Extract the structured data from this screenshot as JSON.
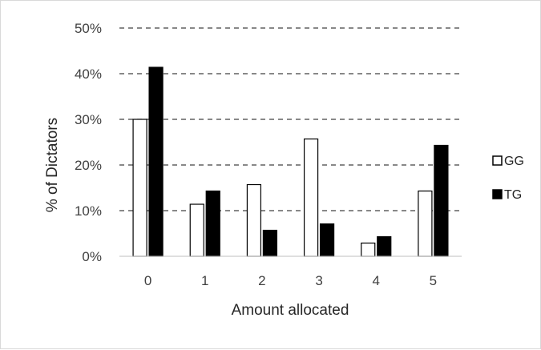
{
  "chart_data": {
    "type": "bar",
    "title": "",
    "xlabel": "Amount allocated",
    "ylabel": "% of Dictators",
    "categories": [
      "0",
      "1",
      "2",
      "3",
      "4",
      "5"
    ],
    "ylim": [
      0,
      50
    ],
    "yticks": [
      0,
      10,
      20,
      30,
      40,
      50
    ],
    "ytick_labels": [
      "0%",
      "10%",
      "20%",
      "30%",
      "40%",
      "50%"
    ],
    "grid": "horizontal dashed",
    "legend_position": "right",
    "series": [
      {
        "name": "GG",
        "values": [
          30.0,
          11.4,
          15.7,
          25.7,
          2.9,
          14.3
        ],
        "fill": "#ffffff",
        "stroke": "#000000"
      },
      {
        "name": "TG",
        "values": [
          41.4,
          14.3,
          5.7,
          7.1,
          4.3,
          24.3
        ],
        "fill": "#000000",
        "stroke": "#000000"
      }
    ]
  }
}
